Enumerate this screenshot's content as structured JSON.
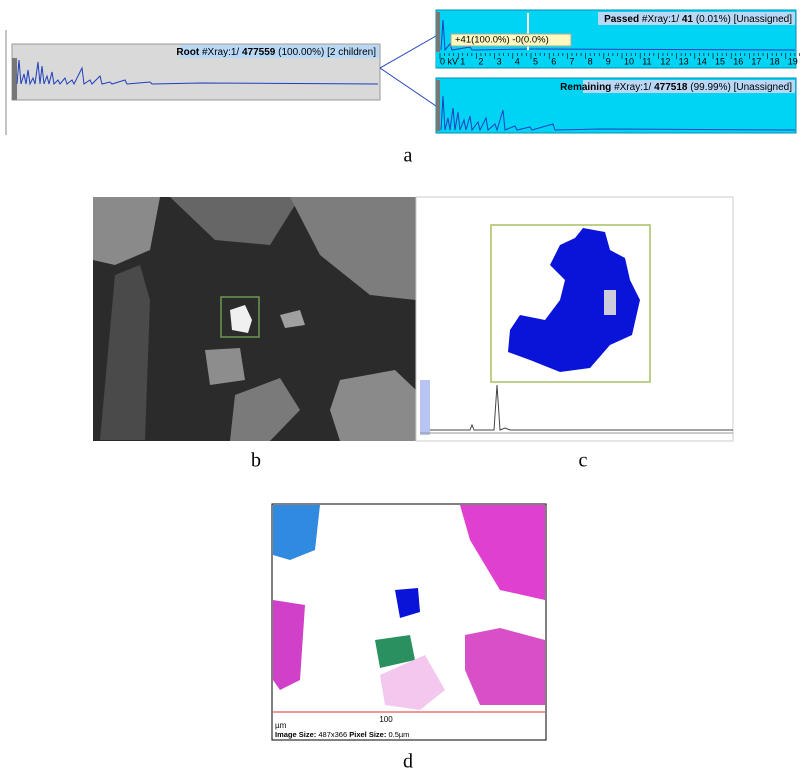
{
  "panel_a": {
    "root": {
      "name": "Root",
      "query": "#Xray:1/",
      "count": "477559",
      "detail": "(100.00%) [2 children]"
    },
    "passed": {
      "name": "Passed",
      "query": "#Xray:1/",
      "count": "41",
      "detail": "(0.01%) [Unassigned]",
      "tooltip": "+41(100.0%) -0(0.0%)",
      "ruler_labels": [
        "0 kV",
        "1",
        "2",
        "3",
        "4",
        "5",
        "6",
        "7",
        "8",
        "9",
        "10",
        "11",
        "12",
        "13",
        "14",
        "15",
        "16",
        "17",
        "18",
        "19"
      ]
    },
    "remaining": {
      "name": "Remaining",
      "query": "#Xray:1/",
      "count": "477518",
      "detail": "(99.99%) [Unassigned]"
    },
    "label": "a"
  },
  "panel_b": {
    "label": "b"
  },
  "panel_c": {
    "label": "c"
  },
  "panel_d": {
    "scale_unit": "µm",
    "scale_value": "100",
    "image_size_label": "Image Size:",
    "image_size": "487x366",
    "pixel_size_label": "Pixel Size:",
    "pixel_size": "0.5µm",
    "label": "d"
  }
}
